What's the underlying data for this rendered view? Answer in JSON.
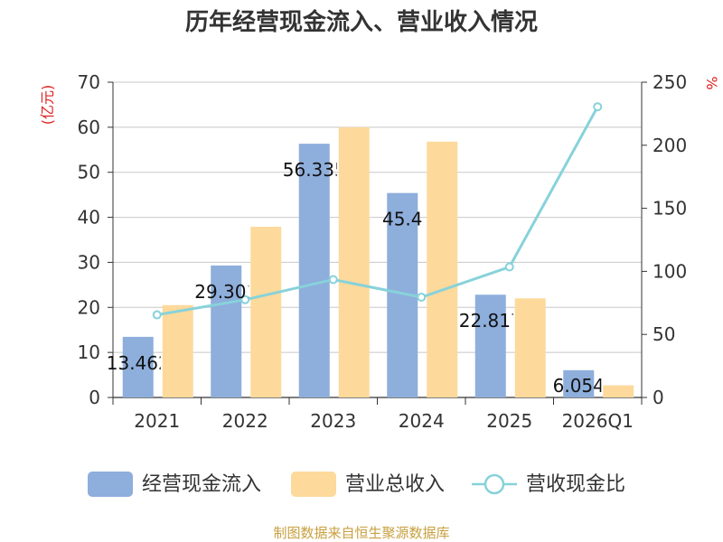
{
  "chart_data": {
    "type": "bar",
    "title": "历年经营现金流入、营业收入情况",
    "categories": [
      "2021",
      "2022",
      "2023",
      "2024",
      "2025",
      "2026Q1"
    ],
    "series": [
      {
        "name": "经营现金流入",
        "type": "bar",
        "axis": "left",
        "color": "#8eaedc",
        "values": [
          13.462,
          29.301,
          56.335,
          45.4,
          22.817,
          6.054
        ],
        "labels": [
          "13.462",
          "29.301",
          "56.335",
          "45.4",
          "22.817",
          "6.054"
        ]
      },
      {
        "name": "营业总收入",
        "type": "bar",
        "axis": "left",
        "color": "#fdd99b",
        "values": [
          20.5,
          37.9,
          60.0,
          56.8,
          22.0,
          2.7
        ]
      },
      {
        "name": "营收现金比",
        "type": "line",
        "axis": "right",
        "color": "#87d2da",
        "values": [
          65.5,
          77.5,
          93.5,
          79.5,
          103.5,
          230.5
        ]
      }
    ],
    "y_left": {
      "label": "(亿元)",
      "ylim": [
        0,
        70
      ],
      "ticks": [
        "0",
        "10",
        "20",
        "30",
        "40",
        "50",
        "60",
        "70"
      ]
    },
    "y_right": {
      "label": "%",
      "ylim": [
        0,
        250
      ],
      "ticks": [
        "0",
        "50",
        "100",
        "150",
        "200",
        "250"
      ]
    },
    "grid": true,
    "legend_position": "bottom"
  },
  "source": "制图数据来自恒生聚源数据库"
}
